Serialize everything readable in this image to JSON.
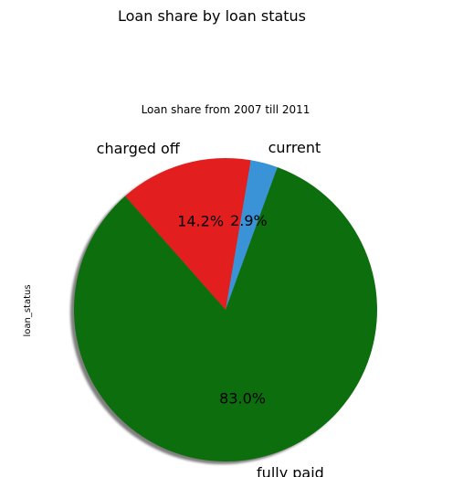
{
  "chart_data": {
    "type": "pie",
    "suptitle": "Loan share by loan status",
    "title": "Loan share from 2007 till 2011",
    "ylabel": "loan_status",
    "shadow": true,
    "slices": [
      {
        "label": "fully paid",
        "value": 83.0,
        "pct_label": "83.0%",
        "color": "#0d6e0d"
      },
      {
        "label": "charged off",
        "value": 14.2,
        "pct_label": "14.2%",
        "color": "#e31e1e"
      },
      {
        "label": "current",
        "value": 2.9,
        "pct_label": "2.9%",
        "color": "#3a93d6"
      }
    ]
  }
}
